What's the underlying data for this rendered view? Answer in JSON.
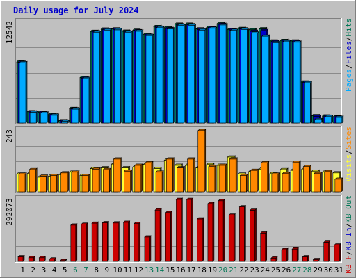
{
  "title": "Daily usage for July 2024",
  "colors": {
    "background": "#c0c0c0",
    "title": "#0000cc",
    "pages": "#00aaff",
    "files": "#0000cc",
    "hits": "#007755",
    "visits": "#ffff33",
    "sites": "#ff8800",
    "kb_out": "#007755",
    "kb_in": "#0000cc",
    "kb_f": "#cc0000",
    "weekend_day_label": "#007755",
    "weekday_day_label": "#000000"
  },
  "chart_data": [
    {
      "type": "bar",
      "panel": "hits",
      "y_max_label": "12542",
      "ylim": [
        0,
        12542
      ],
      "legend": [
        {
          "name": "Pages",
          "sep": "/"
        },
        {
          "name": "Files",
          "sep": "/"
        },
        {
          "name": "Hits",
          "sep": ""
        }
      ],
      "categories": [
        "1",
        "2",
        "3",
        "4",
        "5",
        "6",
        "7",
        "8",
        "9",
        "10",
        "11",
        "12",
        "13",
        "14",
        "15",
        "16",
        "17",
        "18",
        "19",
        "20",
        "21",
        "22",
        "23",
        "24",
        "25",
        "26",
        "27",
        "28",
        "29",
        "30",
        "31"
      ],
      "series": [
        {
          "name": "Hits",
          "values": [
            7600,
            1400,
            1330,
            1040,
            280,
            1800,
            5650,
            11400,
            11680,
            11700,
            11420,
            11540,
            11000,
            12000,
            11840,
            12300,
            12300,
            11700,
            11900,
            12360,
            11640,
            11760,
            11600,
            11720,
            10200,
            10270,
            10200,
            5100,
            900,
            870,
            750
          ]
        },
        {
          "name": "Files",
          "values": [
            7550,
            1370,
            1280,
            990,
            250,
            1760,
            5580,
            11350,
            11620,
            11640,
            11360,
            11480,
            10930,
            11920,
            11760,
            12220,
            12220,
            11620,
            11840,
            12280,
            11580,
            11700,
            11400,
            11500,
            10100,
            10190,
            10120,
            5050,
            820,
            830,
            720
          ]
        },
        {
          "name": "Pages",
          "values": [
            7500,
            1340,
            1240,
            960,
            220,
            1720,
            5520,
            11300,
            11560,
            11590,
            11300,
            11420,
            10880,
            11850,
            11700,
            12160,
            12160,
            11560,
            11780,
            12200,
            11520,
            11640,
            11200,
            10800,
            10000,
            10110,
            10050,
            5000,
            420,
            790,
            690
          ]
        }
      ]
    },
    {
      "type": "bar",
      "panel": "visits",
      "y_max_label": "243",
      "ylim": [
        0,
        243
      ],
      "legend": [
        {
          "name": "Visits",
          "sep": "/"
        },
        {
          "name": "Sites",
          "sep": ""
        }
      ],
      "categories": [
        "1",
        "2",
        "3",
        "4",
        "5",
        "6",
        "7",
        "8",
        "9",
        "10",
        "11",
        "12",
        "13",
        "14",
        "15",
        "16",
        "17",
        "18",
        "19",
        "20",
        "21",
        "22",
        "23",
        "24",
        "25",
        "26",
        "27",
        "28",
        "29",
        "30",
        "31"
      ],
      "series": [
        {
          "name": "Visits",
          "values": [
            70,
            72,
            58,
            62,
            68,
            78,
            65,
            92,
            95,
            110,
            95,
            98,
            108,
            92,
            125,
            105,
            105,
            95,
            108,
            105,
            138,
            70,
            80,
            90,
            72,
            88,
            85,
            88,
            82,
            78,
            75
          ]
        },
        {
          "name": "Sites",
          "values": [
            70,
            88,
            62,
            65,
            75,
            78,
            65,
            90,
            88,
            130,
            82,
            105,
            115,
            78,
            130,
            95,
            130,
            243,
            100,
            105,
            130,
            65,
            85,
            115,
            70,
            72,
            118,
            100,
            72,
            80,
            50
          ]
        }
      ]
    },
    {
      "type": "bar",
      "panel": "kbytes",
      "y_max_label": "292073",
      "ylim": [
        0,
        292073
      ],
      "legend": [
        {
          "name": "KB F",
          "sep": "/"
        },
        {
          "name": "KB In",
          "sep": "/"
        },
        {
          "name": "KB Out",
          "sep": ""
        }
      ],
      "categories": [
        "1",
        "2",
        "3",
        "4",
        "5",
        "6",
        "7",
        "8",
        "9",
        "10",
        "11",
        "12",
        "13",
        "14",
        "15",
        "16",
        "17",
        "18",
        "19",
        "20",
        "21",
        "22",
        "23",
        "24",
        "25",
        "26",
        "27",
        "28",
        "29",
        "30",
        "31"
      ],
      "series": [
        {
          "name": "KB F",
          "values": [
            21000,
            17000,
            17000,
            11000,
            3000,
            171000,
            175000,
            180000,
            182000,
            181000,
            184000,
            178000,
            115000,
            242000,
            230000,
            292000,
            292000,
            200000,
            272000,
            286000,
            218000,
            257000,
            241000,
            133000,
            15000,
            55000,
            58000,
            21000,
            8000,
            90000,
            77000
          ]
        }
      ]
    }
  ],
  "x_labels": [
    "1",
    "2",
    "3",
    "4",
    "5",
    "6",
    "7",
    "8",
    "9",
    "10",
    "11",
    "12",
    "13",
    "14",
    "15",
    "16",
    "17",
    "18",
    "19",
    "20",
    "21",
    "22",
    "23",
    "24",
    "25",
    "26",
    "27",
    "28",
    "29",
    "30",
    "31"
  ],
  "weekend_days": [
    "6",
    "7",
    "13",
    "14",
    "20",
    "21",
    "27",
    "28"
  ]
}
